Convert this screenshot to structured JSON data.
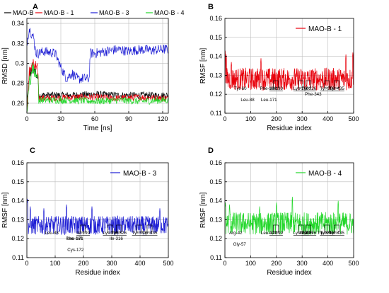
{
  "chart_data": [
    {
      "panel": "A",
      "type": "line",
      "xlabel": "Time [ns]",
      "ylabel": "RMSD [nm]",
      "xlim": [
        0,
        125
      ],
      "ylim": [
        0.25,
        0.345
      ],
      "xticks": [
        0,
        30,
        60,
        90,
        120
      ],
      "yticks": [
        0.26,
        0.28,
        0.3,
        0.32,
        0.34
      ],
      "grid": true,
      "legend": "top",
      "series": [
        {
          "name": "MAO-B",
          "color": "#000000",
          "x": [
            0,
            2,
            5,
            8,
            10,
            10.5,
            20,
            40,
            60,
            80,
            100,
            120,
            124
          ],
          "y": [
            0.255,
            0.285,
            0.295,
            0.29,
            0.285,
            0.268,
            0.268,
            0.268,
            0.269,
            0.268,
            0.268,
            0.268,
            0.268
          ]
        },
        {
          "name": "MAO-B - 1",
          "color": "#e8000b",
          "x": [
            0,
            2,
            5,
            8,
            10,
            10.5,
            20,
            40,
            60,
            80,
            100,
            120,
            124
          ],
          "y": [
            0.255,
            0.29,
            0.3,
            0.295,
            0.29,
            0.265,
            0.265,
            0.266,
            0.266,
            0.265,
            0.266,
            0.265,
            0.265
          ]
        },
        {
          "name": "MAO-B - 3",
          "color": "#1f1fd4",
          "x": [
            0,
            2,
            4,
            6,
            8,
            10,
            15,
            25,
            30,
            35,
            40,
            45,
            50,
            55,
            56,
            60,
            70,
            80,
            90,
            100,
            110,
            120,
            124
          ],
          "y": [
            0.32,
            0.335,
            0.33,
            0.325,
            0.31,
            0.31,
            0.312,
            0.31,
            0.296,
            0.285,
            0.29,
            0.284,
            0.285,
            0.284,
            0.31,
            0.31,
            0.312,
            0.314,
            0.312,
            0.314,
            0.313,
            0.314,
            0.314
          ]
        },
        {
          "name": "MAO-B - 4",
          "color": "#22d72a",
          "x": [
            0,
            2,
            5,
            8,
            10,
            10.5,
            20,
            40,
            60,
            80,
            100,
            120,
            124
          ],
          "y": [
            0.25,
            0.28,
            0.295,
            0.29,
            0.285,
            0.263,
            0.263,
            0.263,
            0.262,
            0.263,
            0.262,
            0.263,
            0.263
          ]
        }
      ]
    },
    {
      "panel": "B",
      "type": "line",
      "xlabel": "Residue index",
      "ylabel": "RMSF [nm]",
      "xlim": [
        0,
        500
      ],
      "ylim": [
        0.11,
        0.16
      ],
      "xticks": [
        0,
        100,
        200,
        300,
        400,
        500
      ],
      "yticks": [
        0.11,
        0.12,
        0.13,
        0.14,
        0.15,
        0.16
      ],
      "grid": true,
      "legend": "top-right",
      "series": [
        {
          "name": "MAO-B - 1",
          "color": "#e8000b",
          "baseline": 0.128,
          "amplitude": 0.006,
          "peaks": [
            [
              1,
              0.143
            ],
            [
              5,
              0.141
            ],
            [
              25,
              0.137
            ],
            [
              140,
              0.139
            ],
            [
              470,
              0.141
            ],
            [
              497,
              0.142
            ]
          ]
        }
      ],
      "annotations": [
        {
          "text": "Tyr-60",
          "x": 60
        },
        {
          "text": "Leu-88",
          "x": 88
        },
        {
          "text": "Phe-168",
          "x": 168
        },
        {
          "text": "Leu-171",
          "x": 171
        },
        {
          "text": "Ile-199",
          "x": 199,
          "boxed": true
        },
        {
          "text": "Lys-296",
          "x": 296,
          "boxed": true
        },
        {
          "text": "Tyr-326",
          "x": 326,
          "boxed": true
        },
        {
          "text": "Phe-343",
          "x": 343
        },
        {
          "text": "Tyr-398",
          "x": 398,
          "boxed": true
        },
        {
          "text": "Tyr-435",
          "x": 435,
          "boxed": true
        }
      ]
    },
    {
      "panel": "C",
      "type": "line",
      "xlabel": "Residue index",
      "ylabel": "RMSF [nm]",
      "xlim": [
        0,
        500
      ],
      "ylim": [
        0.11,
        0.16
      ],
      "xticks": [
        0,
        100,
        200,
        300,
        400,
        500
      ],
      "yticks": [
        0.11,
        0.12,
        0.13,
        0.14,
        0.15,
        0.16
      ],
      "grid": true,
      "legend": "top-right",
      "series": [
        {
          "name": "MAO-B - 3",
          "color": "#1f1fd4",
          "baseline": 0.127,
          "amplitude": 0.005,
          "peaks": [
            [
              2,
              0.141
            ],
            [
              12,
              0.137
            ],
            [
              60,
              0.136
            ],
            [
              140,
              0.138
            ],
            [
              230,
              0.137
            ],
            [
              470,
              0.136
            ]
          ]
        }
      ],
      "annotations": [
        {
          "text": "Leu-88",
          "x": 88
        },
        {
          "text": "Phe-168",
          "x": 168
        },
        {
          "text": "Leu-171",
          "x": 171
        },
        {
          "text": "Cys-172",
          "x": 172
        },
        {
          "text": "Ile-199",
          "x": 199,
          "boxed": true
        },
        {
          "text": "Lys-296",
          "x": 296,
          "boxed": true
        },
        {
          "text": "Tyr-326",
          "x": 326,
          "boxed": true
        },
        {
          "text": "Ile-316",
          "x": 316
        },
        {
          "text": "Tyr-398",
          "x": 398,
          "boxed": true
        },
        {
          "text": "Tyr-435",
          "x": 435,
          "boxed": true
        }
      ]
    },
    {
      "panel": "D",
      "type": "line",
      "xlabel": "Residue index",
      "ylabel": "RMSF [nm]",
      "xlim": [
        0,
        500
      ],
      "ylim": [
        0.11,
        0.16
      ],
      "xticks": [
        0,
        100,
        200,
        300,
        400,
        500
      ],
      "yticks": [
        0.11,
        0.12,
        0.13,
        0.14,
        0.15,
        0.16
      ],
      "grid": true,
      "legend": "top-right",
      "series": [
        {
          "name": "MAO-B - 4",
          "color": "#22d72a",
          "baseline": 0.128,
          "amplitude": 0.006,
          "peaks": [
            [
              2,
              0.139
            ],
            [
              18,
              0.138
            ],
            [
              135,
              0.137
            ],
            [
              200,
              0.139
            ],
            [
              262,
              0.142
            ],
            [
              440,
              0.14
            ]
          ]
        }
      ],
      "annotations": [
        {
          "text": "Arg-42",
          "x": 42
        },
        {
          "text": "Gly-57",
          "x": 57
        },
        {
          "text": "Leu-171",
          "x": 171
        },
        {
          "text": "Ile-199",
          "x": 199,
          "boxed": true
        },
        {
          "text": "Lys-296",
          "x": 296,
          "boxed": true
        },
        {
          "text": "Tyr-326",
          "x": 326,
          "boxed": true
        },
        {
          "text": "Ile-316",
          "x": 316
        },
        {
          "text": "Tyr-398",
          "x": 398,
          "boxed": true
        },
        {
          "text": "Trp-388",
          "x": 388
        },
        {
          "text": "Tyr-435",
          "x": 435,
          "boxed": true
        }
      ]
    }
  ]
}
